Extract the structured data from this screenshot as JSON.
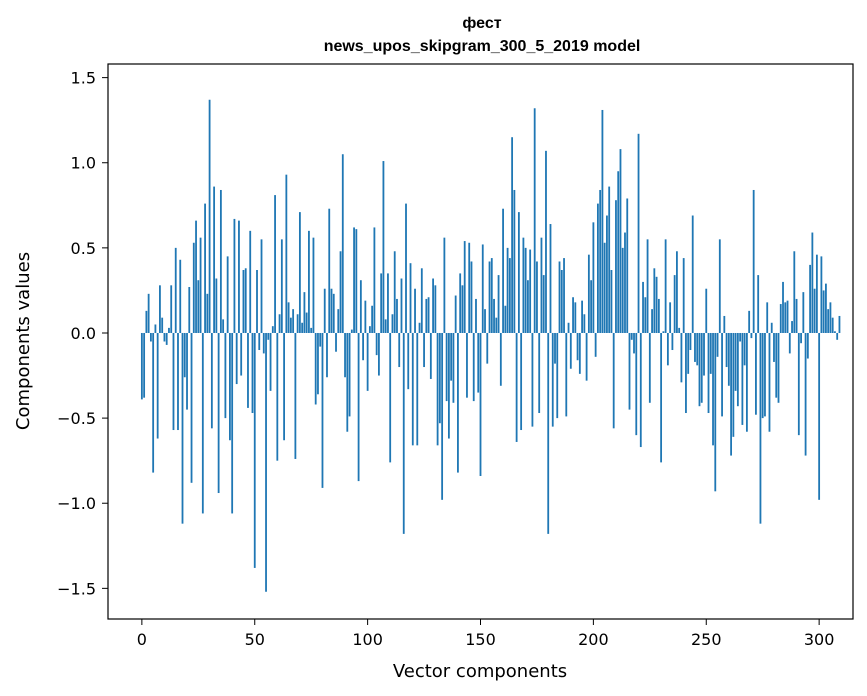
{
  "chart_data": {
    "type": "bar",
    "title_lines": [
      "фест",
      "news_upos_skipgram_300_5_2019 model"
    ],
    "xlabel": "Vector components",
    "ylabel": "Components values",
    "xlim": [
      -15,
      315
    ],
    "ylim": [
      -1.68,
      1.58
    ],
    "xticks": [
      0,
      50,
      100,
      150,
      200,
      250,
      300
    ],
    "xtick_labels": [
      "0",
      "50",
      "100",
      "150",
      "200",
      "250",
      "300"
    ],
    "yticks": [
      -1.5,
      -1.0,
      -0.5,
      0.0,
      0.5,
      1.0,
      1.5
    ],
    "ytick_labels": [
      "−1.5",
      "−1.0",
      "−0.5",
      "0.0",
      "0.5",
      "1.0",
      "1.5"
    ],
    "bar_color": "#1f77b4",
    "values": [
      -0.39,
      -0.38,
      0.13,
      0.23,
      -0.05,
      -0.82,
      0.05,
      -0.62,
      0.28,
      0.09,
      -0.05,
      -0.07,
      0.03,
      0.28,
      -0.57,
      0.5,
      -0.57,
      0.43,
      -1.12,
      -0.26,
      -0.45,
      0.27,
      -0.88,
      0.53,
      0.66,
      0.31,
      0.56,
      -1.06,
      0.76,
      0.23,
      1.37,
      -0.56,
      0.86,
      0.32,
      -0.94,
      0.84,
      0.08,
      -0.5,
      0.45,
      -0.63,
      -1.06,
      0.67,
      -0.3,
      0.66,
      -0.25,
      0.37,
      0.38,
      -0.44,
      0.6,
      -0.47,
      -1.38,
      0.37,
      -0.1,
      0.55,
      -0.12,
      -1.52,
      -0.04,
      -0.34,
      0.04,
      0.81,
      -0.75,
      0.11,
      0.55,
      -0.63,
      0.93,
      0.18,
      0.09,
      0.14,
      -0.74,
      0.11,
      0.71,
      0.06,
      0.24,
      0.12,
      0.6,
      0.03,
      0.56,
      -0.42,
      -0.36,
      -0.08,
      -0.91,
      0.26,
      -0.26,
      0.73,
      0.26,
      0.23,
      -0.11,
      0.14,
      0.48,
      1.05,
      -0.26,
      -0.58,
      -0.49,
      0.02,
      0.62,
      0.61,
      -0.87,
      0.31,
      -0.16,
      0.19,
      -0.34,
      0.04,
      0.16,
      0.62,
      -0.13,
      -0.25,
      0.35,
      1.01,
      0.08,
      0.35,
      -0.76,
      0.11,
      0.48,
      0.2,
      -0.2,
      0.32,
      -1.18,
      0.76,
      -0.33,
      0.41,
      -0.66,
      0.26,
      -0.66,
      0.06,
      0.38,
      -0.2,
      0.2,
      0.21,
      -0.27,
      0.32,
      0.28,
      -0.66,
      -0.53,
      -0.98,
      0.56,
      -0.4,
      -0.62,
      -0.28,
      -0.41,
      0.22,
      -0.82,
      0.35,
      0.28,
      0.54,
      -0.38,
      0.53,
      0.42,
      -0.4,
      0.2,
      -0.35,
      -0.84,
      0.52,
      0.14,
      -0.18,
      0.42,
      0.44,
      0.2,
      0.09,
      0.34,
      -0.31,
      0.73,
      0.16,
      0.5,
      0.44,
      1.15,
      0.84,
      -0.64,
      0.71,
      -0.57,
      0.56,
      0.5,
      0.31,
      0.49,
      -0.55,
      1.32,
      0.42,
      -0.47,
      0.56,
      0.34,
      1.07,
      -1.18,
      0.64,
      -0.55,
      -0.18,
      -0.5,
      0.42,
      0.37,
      0.44,
      -0.49,
      0.06,
      -0.21,
      0.21,
      0.18,
      -0.16,
      -0.24,
      0.19,
      0.11,
      -0.28,
      0.46,
      0.31,
      0.65,
      -0.14,
      0.76,
      0.84,
      1.31,
      0.53,
      0.69,
      0.86,
      0.37,
      -0.56,
      0.78,
      0.95,
      1.08,
      0.5,
      0.59,
      0.79,
      -0.45,
      -0.04,
      -0.12,
      -0.6,
      1.17,
      -0.67,
      0.3,
      0.21,
      0.55,
      -0.41,
      0.14,
      0.38,
      0.33,
      0.2,
      -0.76,
      0.01,
      0.55,
      -0.19,
      0.18,
      -0.1,
      0.34,
      0.48,
      0.03,
      -0.29,
      0.44,
      -0.47,
      -0.24,
      -0.1,
      0.69,
      -0.17,
      -0.19,
      -0.43,
      -0.41,
      -0.25,
      0.26,
      -0.47,
      -0.24,
      -0.66,
      -0.93,
      -0.14,
      0.55,
      -0.49,
      0.1,
      -0.2,
      -0.31,
      -0.72,
      -0.61,
      -0.34,
      -0.43,
      -0.05,
      -0.54,
      -0.19,
      -0.58,
      0.13,
      -0.03,
      0.84,
      -0.48,
      0.34,
      -1.12,
      -0.5,
      -0.49,
      0.18,
      -0.58,
      0.06,
      -0.17,
      -0.38,
      -0.41,
      0.17,
      0.3,
      0.18,
      0.19,
      -0.12,
      0.07,
      0.48,
      0.2,
      -0.6,
      -0.06,
      0.24,
      -0.72,
      -0.15,
      0.4,
      0.59,
      0.26,
      0.46,
      -0.98,
      0.45,
      0.25,
      0.29,
      0.14,
      0.18,
      0.09,
      0.01,
      -0.04,
      0.1
    ]
  }
}
